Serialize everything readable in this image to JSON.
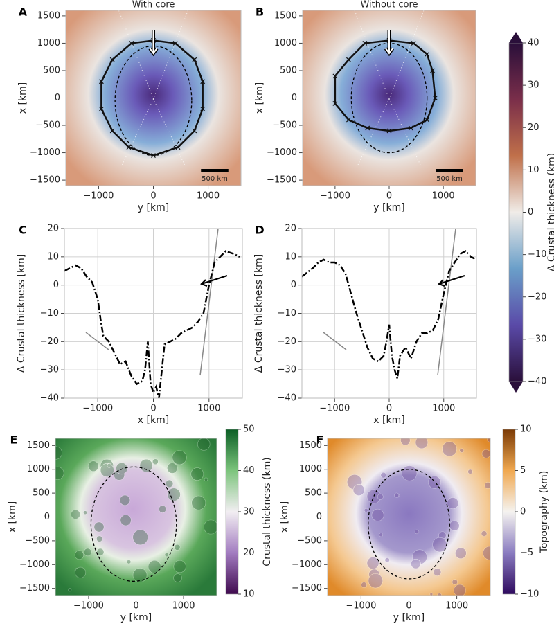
{
  "chart_data": [
    {
      "type": "map",
      "label": "A",
      "title": "With core",
      "xlabel": "y [km]",
      "ylabel": "x [km]",
      "xlim": [
        -1600,
        1600
      ],
      "ylim": [
        -1600,
        1600
      ],
      "xticks": [
        {
          "value": -1000,
          "label": "−1000"
        },
        0,
        1000
      ],
      "yticks": [
        {
          "value": -1500,
          "label": "−1500"
        },
        {
          "value": -1000,
          "label": "−1000"
        },
        {
          "value": -500,
          "label": "−500"
        },
        0,
        500,
        1000,
        1500
      ],
      "scalebar": {
        "length": 500,
        "label": "500 km"
      },
      "outline": {
        "x": [
          0,
          400,
          750,
          900,
          900,
          750,
          450,
          0,
          -450,
          -750,
          -950,
          -950,
          -750,
          -400,
          0
        ],
        "values": [
          1050,
          1000,
          700,
          300,
          -200,
          -600,
          -900,
          -1050,
          -900,
          -600,
          -200,
          300,
          700,
          1000,
          1050
        ]
      },
      "ellipse": {
        "cx": 0,
        "cy": -50,
        "rx": 700,
        "ry": 1000
      }
    },
    {
      "type": "map",
      "label": "B",
      "title": "Without core",
      "xlabel": "y [km]",
      "ylabel": "x [km]",
      "xlim": [
        -1600,
        1600
      ],
      "ylim": [
        -1600,
        1600
      ],
      "xticks": [
        {
          "value": -1000,
          "label": "−1000"
        },
        0,
        1000
      ],
      "yticks": [
        {
          "value": -1500,
          "label": "−1500"
        },
        {
          "value": -1000,
          "label": "−1000"
        },
        {
          "value": -500,
          "label": "−500"
        },
        0,
        500,
        1000,
        1500
      ],
      "scalebar": {
        "length": 500,
        "label": "500 km"
      },
      "outline": {
        "x": [
          0,
          450,
          700,
          800,
          850,
          700,
          400,
          0,
          -400,
          -750,
          -1000,
          -1000,
          -750,
          -450,
          0
        ],
        "values": [
          1050,
          1000,
          800,
          500,
          0,
          -400,
          -550,
          -600,
          -550,
          -400,
          -100,
          400,
          700,
          1000,
          1050
        ]
      },
      "ellipse": {
        "cx": 0,
        "cy": 0,
        "rx": 700,
        "ry": 1000
      }
    },
    {
      "type": "colorbar",
      "label": "Δ Crustal thickness (km)",
      "ylim": [
        -40,
        40
      ],
      "extend": "both",
      "yticks": [
        {
          "value": -40,
          "label": "−40"
        },
        {
          "value": -30,
          "label": "−30"
        },
        {
          "value": -20,
          "label": "−20"
        },
        {
          "value": -10,
          "label": "−10"
        },
        0,
        10,
        20,
        30,
        40
      ],
      "colors": [
        "#2a0f3a",
        "#5a4aa8",
        "#6a9fc9",
        "#f0ece8",
        "#c0704a",
        "#7a2e4a",
        "#2a0f3a"
      ]
    },
    {
      "type": "line",
      "label": "C",
      "xlabel": "x [km]",
      "ylabel": "Δ Crustal thickness [km]",
      "grid": true,
      "color": "#000000",
      "xlim": [
        -1600,
        1600
      ],
      "ylim": [
        -40,
        20
      ],
      "xticks": [
        {
          "value": -1000,
          "label": "−1000"
        },
        0,
        1000
      ],
      "yticks": [
        {
          "value": -40,
          "label": "−40"
        },
        {
          "value": -30,
          "label": "−30"
        },
        {
          "value": -20,
          "label": "−20"
        },
        {
          "value": -10,
          "label": "−10"
        },
        0,
        10,
        20
      ],
      "x": [
        -1600,
        -1500,
        -1400,
        -1300,
        -1200,
        -1100,
        -1000,
        -950,
        -900,
        -800,
        -700,
        -600,
        -500,
        -400,
        -300,
        -200,
        -150,
        -100,
        -50,
        0,
        50,
        100,
        200,
        300,
        400,
        500,
        600,
        700,
        800,
        900,
        1000,
        1100,
        1300,
        1450,
        1550
      ],
      "values": [
        5,
        6,
        7,
        6,
        3,
        1,
        -5,
        -12,
        -18,
        -20,
        -24,
        -28,
        -27,
        -32,
        -35,
        -34,
        -30,
        -20,
        -35,
        -38,
        -36,
        -40,
        -21,
        -20,
        -19,
        -17,
        -16,
        -15,
        -13,
        -10,
        0,
        8,
        12,
        11,
        10
      ]
    },
    {
      "type": "line",
      "label": "D",
      "xlabel": "x [km]",
      "ylabel": "Δ Crustal thickness [km]",
      "grid": true,
      "color": "#000000",
      "xlim": [
        -1600,
        1600
      ],
      "ylim": [
        -40,
        20
      ],
      "xticks": [
        {
          "value": -1000,
          "label": "−1000"
        },
        0,
        1000
      ],
      "yticks": [
        {
          "value": -40,
          "label": "−40"
        },
        {
          "value": -30,
          "label": "−30"
        },
        {
          "value": -20,
          "label": "−20"
        },
        {
          "value": -10,
          "label": "−10"
        },
        0,
        10,
        20
      ],
      "x": [
        -1600,
        -1400,
        -1300,
        -1200,
        -1100,
        -1000,
        -900,
        -800,
        -700,
        -600,
        -500,
        -400,
        -300,
        -200,
        -100,
        -50,
        0,
        50,
        100,
        150,
        200,
        300,
        400,
        500,
        600,
        700,
        800,
        900,
        1000,
        1100,
        1300,
        1400,
        1500,
        1600
      ],
      "values": [
        3,
        6,
        8,
        9,
        8,
        8,
        7,
        4,
        -3,
        -10,
        -16,
        -22,
        -26,
        -27,
        -25,
        -20,
        -14,
        -25,
        -30,
        -33,
        -25,
        -22,
        -26,
        -20,
        -17,
        -17,
        -16,
        -12,
        -3,
        5,
        11,
        12,
        10,
        9
      ]
    },
    {
      "type": "map",
      "label": "E",
      "xlabel": "y [km]",
      "ylabel": "x [km]",
      "xlim": [
        -1700,
        1700
      ],
      "ylim": [
        -1650,
        1650
      ],
      "xticks": [
        {
          "value": -1000,
          "label": "−1000"
        },
        0,
        1000
      ],
      "yticks": [
        {
          "value": -1500,
          "label": "−1500"
        },
        {
          "value": -1000,
          "label": "−1000"
        },
        {
          "value": -500,
          "label": "−500"
        },
        0,
        500,
        1000,
        1500
      ],
      "ellipse": {
        "cx": -50,
        "cy": -150,
        "rx": 900,
        "ry": 1200
      }
    },
    {
      "type": "colorbar",
      "label": "Crustal thickness (km)",
      "ylim": [
        10,
        50
      ],
      "yticks": [
        10,
        20,
        30,
        40,
        50
      ],
      "colors": [
        "#3f0a4e",
        "#a27cc0",
        "#f2eef2",
        "#7cc47c",
        "#0b5e25"
      ]
    },
    {
      "type": "map",
      "label": "F",
      "xlabel": "y [km]",
      "ylabel": "x [km]",
      "xlim": [
        -1700,
        1700
      ],
      "ylim": [
        -1650,
        1650
      ],
      "xticks": [
        {
          "value": -1000,
          "label": "−1000"
        },
        0,
        1000
      ],
      "yticks": [
        {
          "value": -1500,
          "label": "−1500"
        },
        {
          "value": -1000,
          "label": "−1000"
        },
        {
          "value": -500,
          "label": "−500"
        },
        0,
        500,
        1000,
        1500
      ],
      "ellipse": {
        "cx": 0,
        "cy": -150,
        "rx": 850,
        "ry": 1150
      }
    },
    {
      "type": "colorbar",
      "label": "Topography (km)",
      "ylim": [
        -10,
        10
      ],
      "yticks": [
        {
          "value": -10,
          "label": "−10"
        },
        {
          "value": -5,
          "label": "−5"
        },
        0,
        5,
        10
      ],
      "colors": [
        "#2e0a5e",
        "#8a7cc0",
        "#f5f3f0",
        "#f0a850",
        "#7a3a05"
      ]
    }
  ]
}
